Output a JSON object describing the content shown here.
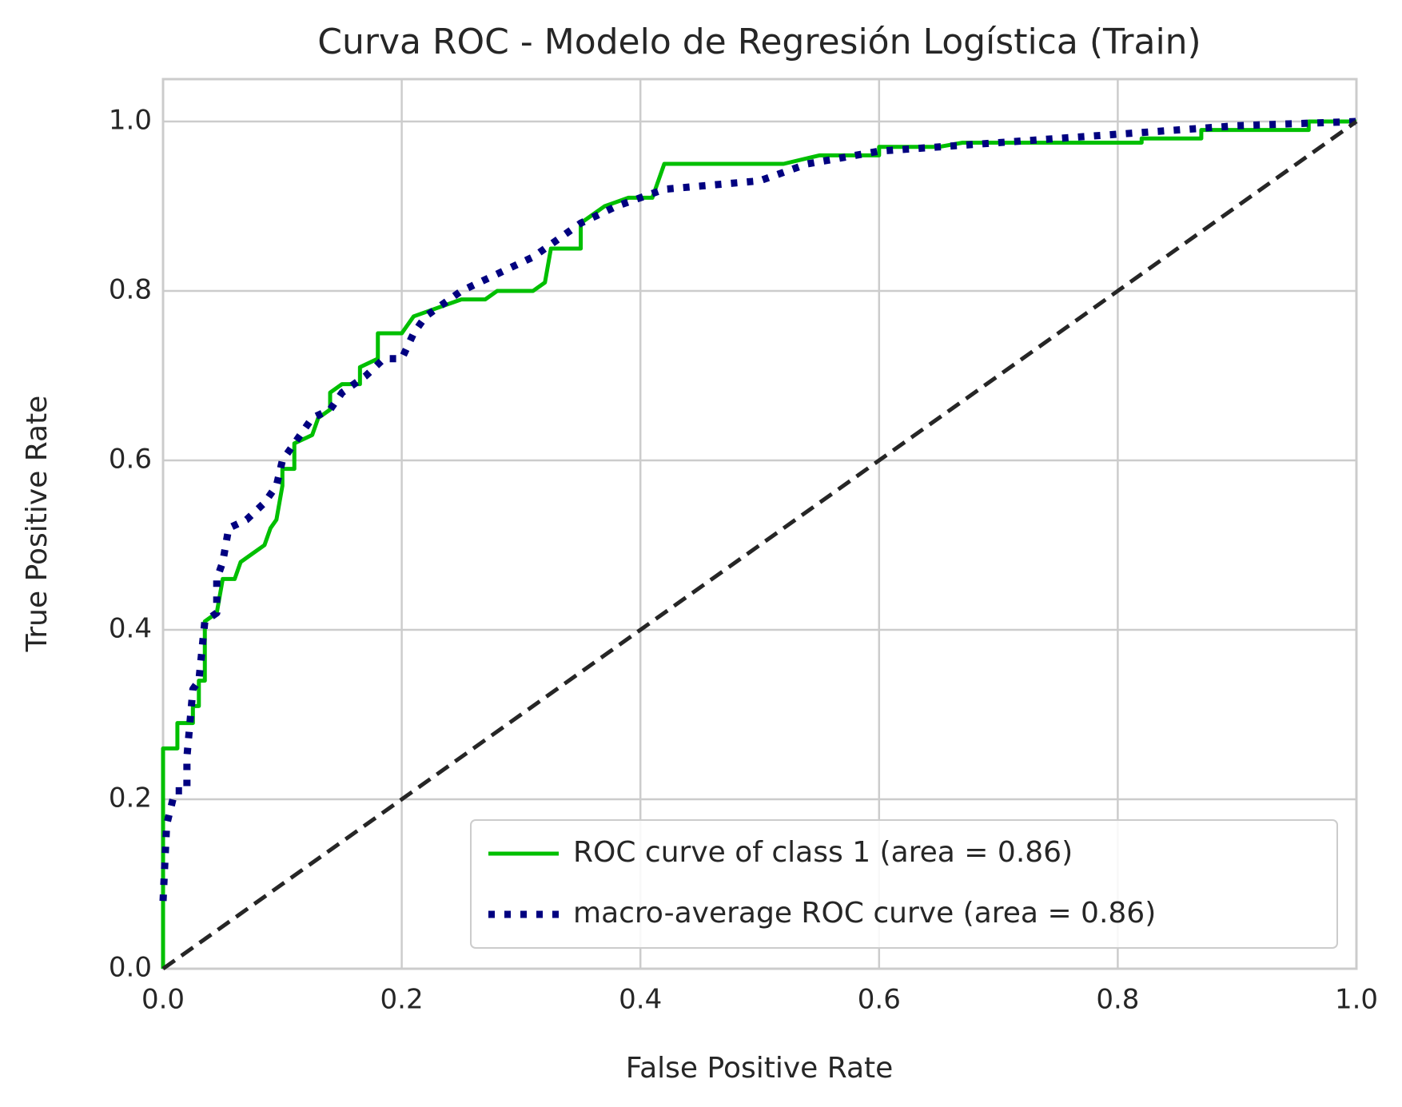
{
  "chart_data": {
    "type": "line",
    "title": "Curva ROC - Modelo de Regresión Logística (Train)",
    "x_label": "False Positive Rate",
    "y_label": "True Positive Rate",
    "xlim": [
      0,
      1
    ],
    "ylim": [
      0,
      1.05
    ],
    "xticks": [
      {
        "value": 0,
        "label": "0.0"
      },
      0.2,
      0.4,
      0.6,
      0.8,
      {
        "value": 1,
        "label": "1.0"
      }
    ],
    "yticks": [
      {
        "value": 0,
        "label": "0.0"
      },
      0.2,
      0.4,
      0.6,
      0.8,
      {
        "value": 1,
        "label": "1.0"
      }
    ],
    "grid": true,
    "legend": "lower right",
    "series": [
      {
        "name": "ROC curve of class 1 (area = 0.86)",
        "color": "#00bf00",
        "style": "solid",
        "x": [
          0,
          0,
          0.012,
          0.012,
          0.025,
          0.025,
          0.03,
          0.03,
          0.035,
          0.035,
          0.045,
          0.05,
          0.06,
          0.065,
          0.075,
          0.085,
          0.09,
          0.095,
          0.1,
          0.1,
          0.11,
          0.11,
          0.125,
          0.13,
          0.14,
          0.14,
          0.15,
          0.165,
          0.165,
          0.18,
          0.18,
          0.2,
          0.21,
          0.23,
          0.25,
          0.27,
          0.28,
          0.31,
          0.32,
          0.325,
          0.35,
          0.35,
          0.36,
          0.37,
          0.39,
          0.41,
          0.415,
          0.42,
          0.52,
          0.55,
          0.6,
          0.6,
          0.65,
          0.67,
          0.82,
          0.82,
          0.87,
          0.87,
          0.96,
          0.96,
          1
        ],
        "values": [
          0,
          0.26,
          0.26,
          0.29,
          0.29,
          0.31,
          0.31,
          0.34,
          0.34,
          0.41,
          0.42,
          0.46,
          0.46,
          0.48,
          0.49,
          0.5,
          0.52,
          0.53,
          0.57,
          0.59,
          0.59,
          0.62,
          0.63,
          0.65,
          0.66,
          0.68,
          0.69,
          0.69,
          0.71,
          0.72,
          0.75,
          0.75,
          0.77,
          0.78,
          0.79,
          0.79,
          0.8,
          0.8,
          0.81,
          0.85,
          0.85,
          0.88,
          0.89,
          0.9,
          0.91,
          0.91,
          0.93,
          0.95,
          0.95,
          0.96,
          0.96,
          0.97,
          0.97,
          0.975,
          0.975,
          0.98,
          0.98,
          0.99,
          0.99,
          1,
          1
        ]
      },
      {
        "name": "macro-average ROC curve (area = 0.86)",
        "color": "#000080",
        "style": "dotted",
        "x": [
          0,
          0.003,
          0.01,
          0.02,
          0.02,
          0.025,
          0.03,
          0.035,
          0.045,
          0.045,
          0.05,
          0.055,
          0.07,
          0.085,
          0.095,
          0.1,
          0.11,
          0.125,
          0.14,
          0.15,
          0.17,
          0.185,
          0.2,
          0.21,
          0.22,
          0.23,
          0.25,
          0.28,
          0.31,
          0.33,
          0.35,
          0.38,
          0.42,
          0.5,
          0.54,
          0.6,
          0.7,
          0.8,
          0.9,
          1
        ],
        "values": [
          0.08,
          0.17,
          0.21,
          0.21,
          0.25,
          0.33,
          0.34,
          0.41,
          0.42,
          0.46,
          0.48,
          0.52,
          0.53,
          0.55,
          0.57,
          0.6,
          0.62,
          0.65,
          0.66,
          0.68,
          0.7,
          0.72,
          0.72,
          0.75,
          0.77,
          0.78,
          0.8,
          0.82,
          0.84,
          0.86,
          0.88,
          0.9,
          0.92,
          0.93,
          0.95,
          0.965,
          0.975,
          0.985,
          0.995,
          1
        ]
      }
    ],
    "reference_line": {
      "x": [
        0,
        1
      ],
      "values": [
        0,
        1
      ],
      "color": "#262626",
      "style": "dashed"
    }
  }
}
